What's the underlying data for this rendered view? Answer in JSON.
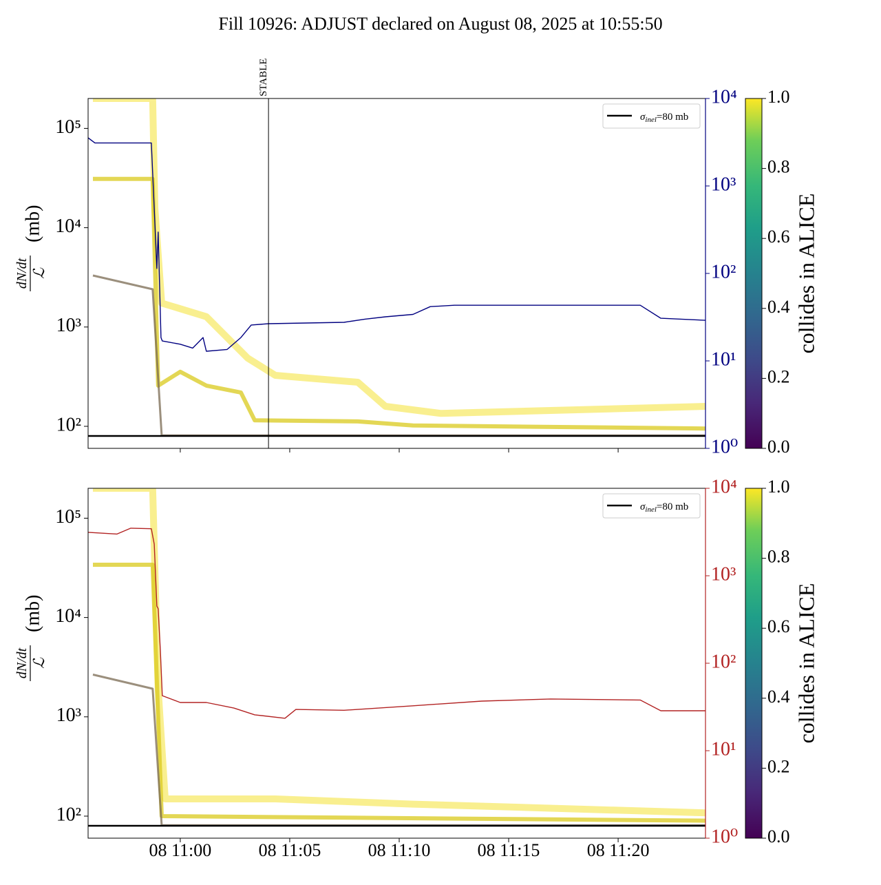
{
  "title": "Fill 10926: ADJUST declared on August 08, 2025 at 10:55:50",
  "chart_data": [
    {
      "type": "line",
      "yscale": "log",
      "y2scale": "log",
      "ylabel_numerator": "dN/dt",
      "ylabel_denominator": "ℒ",
      "ylabel_unit": "(mb)",
      "xlim": [
        -4.21,
        23.99
      ],
      "xticks": [
        0,
        5,
        10,
        15,
        20
      ],
      "ylim": [
        60,
        200000
      ],
      "yticks": [
        {
          "value": 100,
          "label": "10²"
        },
        {
          "value": 1000,
          "label": "10³"
        },
        {
          "value": 10000,
          "label": "10⁴"
        },
        {
          "value": 100000,
          "label": "10⁵"
        }
      ],
      "y2lim": [
        1,
        10000
      ],
      "y2color": "#000080",
      "y2ticks": [
        {
          "value": 1,
          "label": "10⁰"
        },
        {
          "value": 10,
          "label": "10¹"
        },
        {
          "value": 100,
          "label": "10²"
        },
        {
          "value": 1000,
          "label": "10³"
        },
        {
          "value": 10000,
          "label": "10⁴"
        }
      ],
      "vline": {
        "x": 4.03,
        "label": "STABLE"
      },
      "reference_line": {
        "value": 80,
        "color": "#000000",
        "label_symbol": "σ",
        "label_subscript": "inel",
        "label_text": "=80 mb"
      },
      "colorbar": {
        "label": "collides in ALICE",
        "ticks": [
          {
            "value": 0,
            "label": "0.0"
          },
          {
            "value": 0.2,
            "label": "0.2"
          },
          {
            "value": 0.4,
            "label": "0.4"
          },
          {
            "value": 0.6,
            "label": "0.6"
          },
          {
            "value": 0.8,
            "label": "0.8"
          },
          {
            "value": 1,
            "label": "1.0"
          }
        ]
      },
      "series": [
        {
          "color": "#f7ea6a",
          "x": [
            -3.99,
            -1.26,
            -1.16,
            -0.85,
            1.19,
            3.08,
            4.34,
            8.11,
            9.37,
            11.89,
            23.99
          ],
          "values": [
            200000,
            200000,
            15800,
            1740,
            1270,
            486,
            326,
            278,
            159,
            135,
            159
          ]
        },
        {
          "color": "#d9c91c",
          "x": [
            -3.99,
            -1.26,
            -1.01,
            0,
            1.19,
            2.77,
            3.4,
            8.11,
            10.63,
            23.99
          ],
          "values": [
            31000,
            31000,
            257,
            354,
            257,
            219,
            115,
            112,
            102,
            95
          ]
        },
        {
          "color": "#7a6a52",
          "x": [
            -3.99,
            -1.26,
            -0.85,
            23.99
          ],
          "values": [
            3300,
            2400,
            81,
            81
          ]
        },
        {
          "color": "#000080",
          "axis": "y2",
          "x": [
            -4.21,
            -3.9,
            -1.32,
            -1.07,
            -1.01,
            -0.88,
            -0.82,
            0,
            0.57,
            1.04,
            1.19,
            2.14,
            2.77,
            3.24,
            4.03,
            7.48,
            8.43,
            9.37,
            10.63,
            11.42,
            12.52,
            21.01,
            21.95,
            23.99
          ],
          "values": [
            3550,
            3100,
            3100,
            114,
            297,
            18.5,
            16.9,
            15.5,
            14,
            18.5,
            12.9,
            13.5,
            18.5,
            25.7,
            26.6,
            27.6,
            30,
            31.9,
            34,
            41.7,
            43.3,
            43.3,
            30.7,
            29.1
          ]
        }
      ]
    },
    {
      "type": "line",
      "yscale": "log",
      "y2scale": "log",
      "ylabel_numerator": "dN/dt",
      "ylabel_denominator": "ℒ",
      "ylabel_unit": "(mb)",
      "xlim": [
        -4.21,
        23.99
      ],
      "xticks": [
        {
          "value": 0,
          "label": "08 11:00"
        },
        {
          "value": 5,
          "label": "08 11:05"
        },
        {
          "value": 10,
          "label": "08 11:10"
        },
        {
          "value": 15,
          "label": "08 11:15"
        },
        {
          "value": 20,
          "label": "08 11:20"
        }
      ],
      "ylim": [
        60,
        200000
      ],
      "yticks": [
        {
          "value": 100,
          "label": "10²"
        },
        {
          "value": 1000,
          "label": "10³"
        },
        {
          "value": 10000,
          "label": "10⁴"
        },
        {
          "value": 100000,
          "label": "10⁵"
        }
      ],
      "y2lim": [
        1,
        10000
      ],
      "y2color": "#b22222",
      "y2ticks": [
        {
          "value": 1,
          "label": "10⁰"
        },
        {
          "value": 10,
          "label": "10¹"
        },
        {
          "value": 100,
          "label": "10²"
        },
        {
          "value": 1000,
          "label": "10³"
        },
        {
          "value": 10000,
          "label": "10⁴"
        }
      ],
      "reference_line": {
        "value": 80,
        "color": "#000000",
        "label_symbol": "σ",
        "label_subscript": "inel",
        "label_text": "=80 mb"
      },
      "colorbar": {
        "label": "collides in ALICE",
        "ticks": [
          {
            "value": 0,
            "label": "0.0"
          },
          {
            "value": 0.2,
            "label": "0.2"
          },
          {
            "value": 0.4,
            "label": "0.4"
          },
          {
            "value": 0.6,
            "label": "0.6"
          },
          {
            "value": 0.8,
            "label": "0.8"
          },
          {
            "value": 1,
            "label": "1.0"
          }
        ]
      },
      "series": [
        {
          "color": "#f7ea6a",
          "x": [
            -3.99,
            -1.26,
            -1.01,
            -0.69,
            4.34,
            10.63,
            23.99
          ],
          "values": [
            200000,
            200000,
            1920,
            149,
            149,
            132,
            108
          ]
        },
        {
          "color": "#d9c91c",
          "x": [
            -3.99,
            -1.26,
            -0.85,
            23.99
          ],
          "values": [
            34000,
            34000,
            100,
            90
          ]
        },
        {
          "color": "#7a6a52",
          "x": [
            -3.99,
            -1.26,
            -0.85,
            23.99
          ],
          "values": [
            2660,
            1920,
            81,
            81
          ]
        },
        {
          "color": "#b22222",
          "axis": "y2",
          "x": [
            -4.21,
            -2.89,
            -2.26,
            -1.32,
            -1.19,
            -1.07,
            -1.01,
            -0.91,
            -0.82,
            0,
            1.19,
            2.45,
            3.4,
            4.78,
            5.28,
            7.48,
            10.63,
            13.77,
            16.92,
            21.01,
            21.95,
            23.99
          ],
          "values": [
            3140,
            3000,
            3500,
            3450,
            2300,
            450,
            420,
            139,
            42.6,
            35.6,
            35.6,
            30.7,
            25.7,
            23.5,
            29.6,
            29,
            32.6,
            36.9,
            39,
            38,
            28.6,
            28.6
          ]
        }
      ]
    }
  ]
}
